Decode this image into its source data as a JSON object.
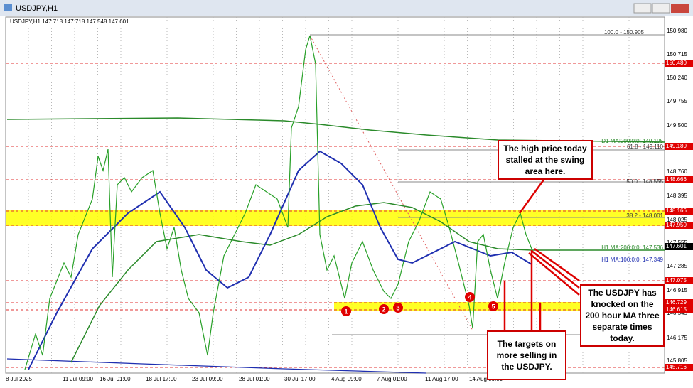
{
  "window": {
    "title": "USDJPY,H1"
  },
  "chart": {
    "header": "USDJPY,H1  147.718 147.718 147.548 147.601",
    "price_labels": [
      "150.980",
      "150.715",
      "150.240",
      "149.755",
      "149.500",
      "148.760",
      "148.395",
      "148.025",
      "147.555",
      "147.285",
      "146.915",
      "146.545",
      "146.175",
      "145.805"
    ],
    "level_boxes": [
      {
        "text": "150.480",
        "kind": "red"
      },
      {
        "text": "149.180",
        "kind": "red"
      },
      {
        "text": "148.666",
        "kind": "red"
      },
      {
        "text": "148.166",
        "kind": "red"
      },
      {
        "text": "147.950",
        "kind": "red"
      },
      {
        "text": "147.601",
        "kind": "black"
      },
      {
        "text": "147.075",
        "kind": "red"
      },
      {
        "text": "146.729",
        "kind": "red"
      },
      {
        "text": "146.615",
        "kind": "red"
      },
      {
        "text": "145.716",
        "kind": "red"
      }
    ],
    "time_labels": [
      "8 Jul 2025",
      "11 Jul 09:00",
      "16 Jul 01:00",
      "18 Jul 17:00",
      "23 Jul 09:00",
      "28 Jul 01:00",
      "30 Jul 17:00",
      "4 Aug 09:00",
      "7 Aug 01:00",
      "11 Aug 17:00",
      "14 Aug 09:00"
    ],
    "line_labels": [
      {
        "text": "100.0 - 150.905",
        "color": "#333"
      },
      {
        "text": "D1 MA:200:0:0: 149.195",
        "color": "#2a8a2a"
      },
      {
        "text": "61.8 - 149.110",
        "color": "#333"
      },
      {
        "text": "50.0 - 148.555",
        "color": "#333"
      },
      {
        "text": "38.2 - 148.001",
        "color": "#333"
      },
      {
        "text": "H1 MA:200:0:0: 147.536",
        "color": "#2a8a2a"
      },
      {
        "text": "H1 MA:100:0:0: 147.349",
        "color": "#1f2fb0"
      }
    ],
    "markers": [
      "1",
      "2",
      "3",
      "4",
      "5"
    ]
  },
  "annotations": [
    "The high price today stalled at the swing area here.",
    "The USDJPY has knocked on the 200 hour MA three separate times today.",
    "The targets on more selling in the USDJPY."
  ]
}
